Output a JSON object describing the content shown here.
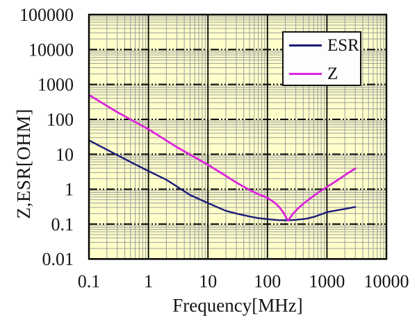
{
  "chart_data": {
    "type": "line",
    "title": "",
    "xlabel": "Frequency[MHz]",
    "ylabel": "Z,ESR[OHM]",
    "x_scale": "log",
    "y_scale": "log",
    "xlim": [
      0.1,
      10000
    ],
    "ylim": [
      0.01,
      100000
    ],
    "x_ticks": [
      0.1,
      1,
      10,
      100,
      1000,
      10000
    ],
    "x_tick_labels": [
      "0.1",
      "1",
      "10",
      "100",
      "1000",
      "10000"
    ],
    "y_ticks": [
      0.01,
      0.1,
      1,
      10,
      100,
      1000,
      10000,
      100000
    ],
    "y_tick_labels": [
      "0.01",
      "0.1",
      "1",
      "10",
      "100",
      "1000",
      "10000",
      "100000"
    ],
    "grid": {
      "major": true,
      "minor": true,
      "legend_position": "top-right-inside"
    },
    "colors": {
      "plot_bg": "#ffffca",
      "minor_grid": "#9c9c9c",
      "major_grid": "#000000",
      "border": "#000000",
      "tick_text": "#141414"
    },
    "legend": {
      "entries": [
        {
          "label": "ESR",
          "color": "#1b1b78"
        },
        {
          "label": "Z",
          "color": "#dd22dd"
        }
      ]
    },
    "series": [
      {
        "name": "ESR",
        "color": "#1b1b78",
        "points": [
          [
            0.1,
            25
          ],
          [
            0.2,
            13.5
          ],
          [
            0.3,
            9.5
          ],
          [
            0.5,
            6.0
          ],
          [
            1,
            3.3
          ],
          [
            2,
            1.85
          ],
          [
            3,
            1.2
          ],
          [
            5,
            0.68
          ],
          [
            10,
            0.4
          ],
          [
            20,
            0.24
          ],
          [
            30,
            0.2
          ],
          [
            50,
            0.165
          ],
          [
            70,
            0.148
          ],
          [
            100,
            0.138
          ],
          [
            150,
            0.13
          ],
          [
            220,
            0.128
          ],
          [
            300,
            0.132
          ],
          [
            450,
            0.142
          ],
          [
            600,
            0.16
          ],
          [
            800,
            0.19
          ],
          [
            1000,
            0.22
          ],
          [
            1500,
            0.25
          ],
          [
            2200,
            0.28
          ],
          [
            3000,
            0.31
          ]
        ]
      },
      {
        "name": "Z",
        "color": "#dd22dd",
        "points": [
          [
            0.1,
            500
          ],
          [
            0.3,
            160
          ],
          [
            1,
            52
          ],
          [
            3,
            16
          ],
          [
            10,
            5.0
          ],
          [
            20,
            2.4
          ],
          [
            30,
            1.55
          ],
          [
            50,
            0.95
          ],
          [
            70,
            0.72
          ],
          [
            100,
            0.56
          ],
          [
            130,
            0.42
          ],
          [
            160,
            0.3
          ],
          [
            190,
            0.2
          ],
          [
            210,
            0.145
          ],
          [
            225,
            0.128
          ],
          [
            240,
            0.15
          ],
          [
            270,
            0.2
          ],
          [
            320,
            0.27
          ],
          [
            400,
            0.38
          ],
          [
            550,
            0.58
          ],
          [
            700,
            0.78
          ],
          [
            1000,
            1.15
          ],
          [
            1500,
            1.8
          ],
          [
            2200,
            2.8
          ],
          [
            3000,
            3.9
          ]
        ]
      }
    ]
  }
}
